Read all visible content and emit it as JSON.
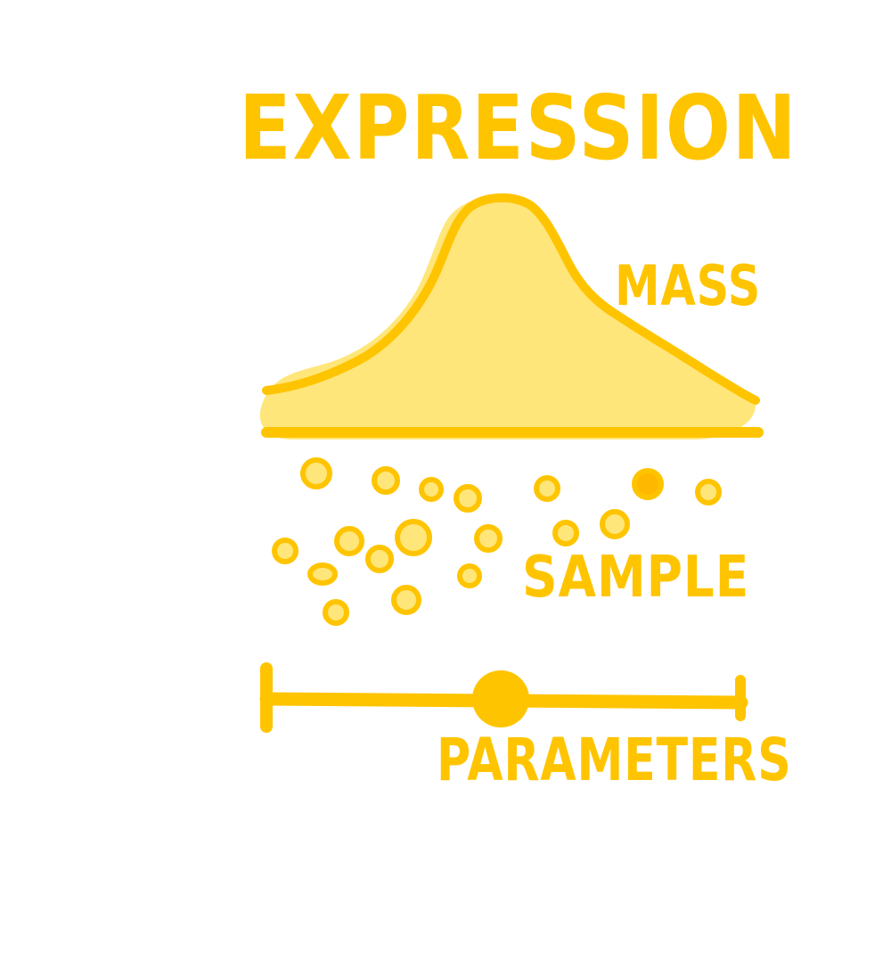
{
  "labels": {
    "title": "EXPRESSION",
    "mass": "MASS",
    "sample": "SAMPLE",
    "parameters": "PARAMETERS"
  },
  "colors": {
    "accent": "#ffc400",
    "fill": "#ffe67a"
  },
  "icons": {
    "distribution_curve": "bell-curve-icon",
    "sample_points": "circle-icon",
    "parameter_track": "slider-track-icon",
    "parameter_handle": "slider-handle-icon"
  }
}
